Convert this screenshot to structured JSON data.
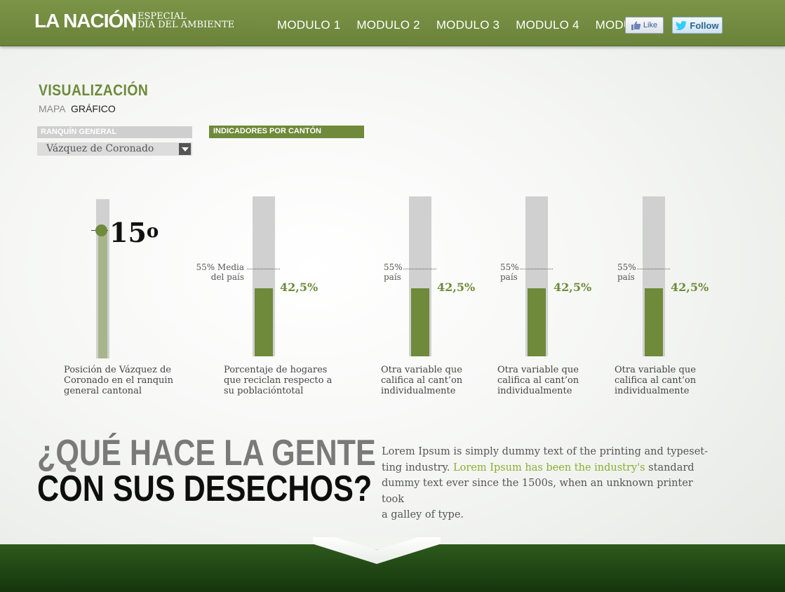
{
  "header": {
    "logo": "LA NACIÓN",
    "subtitle_line1": "ESPECIAL",
    "subtitle_line2": "DÍA DEL AMBIENTE",
    "nav": [
      "MODULO 1",
      "MODULO 2",
      "MODULO 3",
      "MODULO 4",
      "MODULO 5"
    ],
    "like_label": "Like",
    "follow_label": "Follow"
  },
  "section": {
    "title": "VISUALIZACIÓN",
    "tab_map": "MAPA",
    "tab_chart": "GRÁFICO"
  },
  "filters": {
    "ranking_label": "RANQUÍN GENERAL",
    "selected_canton": "Vázquez de Coronado",
    "indicators_tab": "INDICADORES POR CANTÓN"
  },
  "colors": {
    "brand_green": "#6e8a3a",
    "bar_gray": "#d0d0d0",
    "highlight_green": "#8aae2e"
  },
  "rank": {
    "value": "15",
    "suffix": "o",
    "caption": [
      "Posición de Vázquez de",
      "Coronado en el ranquin",
      "general cantonal"
    ]
  },
  "indicators": [
    {
      "ref_lines": [
        "55% Media",
        "del país"
      ],
      "ref_percent": 55,
      "fill_percent": 42.5,
      "value_label": "42,5%",
      "caption": [
        "Porcentaje de hogares",
        "que reciclan respecto a",
        "su poblacióntotal"
      ]
    },
    {
      "ref_lines": [
        "55%",
        "país"
      ],
      "ref_percent": 55,
      "fill_percent": 42.5,
      "value_label": "42,5%",
      "caption": [
        "Otra variable que",
        "califica al cant’on",
        "individualmente"
      ]
    },
    {
      "ref_lines": [
        "55%",
        "país"
      ],
      "ref_percent": 55,
      "fill_percent": 42.5,
      "value_label": "42,5%",
      "caption": [
        "Otra variable que",
        "califica al cant’on",
        "individualmente"
      ]
    },
    {
      "ref_lines": [
        "55%",
        "país"
      ],
      "ref_percent": 55,
      "fill_percent": 42.5,
      "value_label": "42,5%",
      "caption": [
        "Otra variable que",
        "califica al cant’on",
        "individualmente"
      ]
    }
  ],
  "question": {
    "line1": "¿QUÉ HACE LA GENTE",
    "line2": "CON SUS DESECHOS?"
  },
  "body_text": {
    "line1": "Lorem Ipsum is simply dummy text of the printing and typeset-",
    "line2_a": "ting industry. ",
    "line2_link": "Lorem Ipsum has been the industry's",
    "line2_b": " standard",
    "line3": "dummy text ever since the 1500s, when an unknown printer took",
    "line4": "a galley of type."
  }
}
